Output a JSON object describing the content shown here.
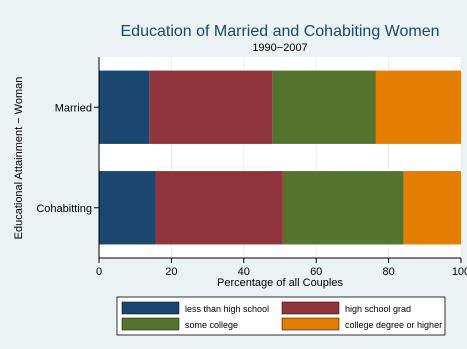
{
  "chart_data": {
    "type": "bar",
    "orientation": "horizontal",
    "stacked": true,
    "title": "Education of Married and Cohabiting Women",
    "subtitle": "1990−2007",
    "xlabel": "Percentage of all Couples",
    "ylabel": "Educational Attainment − Woman",
    "xlim": [
      0,
      100
    ],
    "xticks": [
      0,
      20,
      40,
      60,
      80,
      100
    ],
    "grid": true,
    "legend_position": "bottom",
    "categories": [
      "Married",
      "Cohabitting"
    ],
    "series": [
      {
        "name": "less than high school",
        "color": "#1a476f",
        "values": [
          13.9,
          15.6
        ]
      },
      {
        "name": "high school grad",
        "color": "#90353b",
        "values": [
          34.0,
          35.2
        ]
      },
      {
        "name": "some college",
        "color": "#55752f",
        "values": [
          28.6,
          33.3
        ]
      },
      {
        "name": "college degree or higher",
        "color": "#e37e00",
        "values": [
          23.5,
          15.9
        ]
      }
    ]
  },
  "colors": {
    "background": "#eaf2f3",
    "plot_background": "#ffffff",
    "title": "#1a476f",
    "grid": "#eaf2f3"
  }
}
